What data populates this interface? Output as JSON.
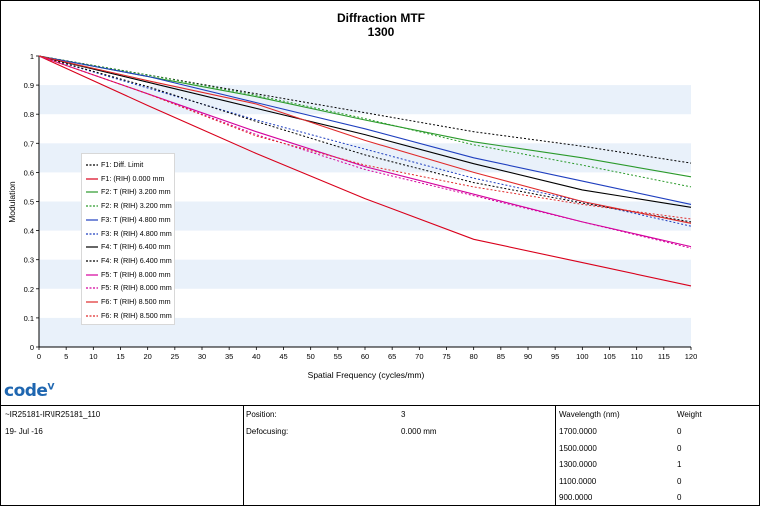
{
  "chart_data": {
    "type": "line",
    "title": "Diffraction MTF",
    "subtitle": "1300",
    "xlabel": "Spatial Frequency (cycles/mm)",
    "ylabel": "Modulation",
    "xlim": [
      0,
      120
    ],
    "ylim": [
      0,
      1
    ],
    "x_ticks": [
      "0",
      "5",
      "10",
      "15",
      "20",
      "25",
      "30",
      "35",
      "40",
      "45",
      "50",
      "55",
      "60",
      "65",
      "70",
      "75",
      "80",
      "85",
      "90",
      "95",
      "100",
      "105",
      "110",
      "115",
      "120"
    ],
    "y_ticks": [
      "0",
      "0.1",
      "0.2",
      "0.3",
      "0.4",
      "0.5",
      "0.6",
      "0.7",
      "0.8",
      "0.9",
      "1"
    ],
    "x": [
      0,
      20,
      40,
      60,
      80,
      100,
      120
    ],
    "series": [
      {
        "name": "F1: Diff. Limit",
        "color": "#000000",
        "dash": true,
        "values": [
          1.0,
          0.935,
          0.87,
          0.805,
          0.74,
          0.69,
          0.632
        ]
      },
      {
        "name": "F1: (RIH) 0.000 mm",
        "color": "#d9001b",
        "dash": false,
        "values": [
          1.0,
          0.83,
          0.665,
          0.51,
          0.37,
          0.29,
          0.21
        ]
      },
      {
        "name": "F2: T (RIH) 3.200 mm",
        "color": "#2b9a2b",
        "dash": false,
        "values": [
          1.0,
          0.93,
          0.86,
          0.78,
          0.705,
          0.65,
          0.585
        ]
      },
      {
        "name": "F2: R (RIH) 3.200 mm",
        "color": "#2b9a2b",
        "dash": true,
        "values": [
          1.0,
          0.935,
          0.865,
          0.785,
          0.695,
          0.625,
          0.55
        ]
      },
      {
        "name": "F3: T (RIH) 4.800 mm",
        "color": "#1f3fbf",
        "dash": false,
        "values": [
          1.0,
          0.93,
          0.84,
          0.75,
          0.65,
          0.57,
          0.49
        ]
      },
      {
        "name": "F3: R (RIH) 4.800 mm",
        "color": "#1f3fbf",
        "dash": true,
        "values": [
          1.0,
          0.89,
          0.78,
          0.68,
          0.58,
          0.5,
          0.415
        ]
      },
      {
        "name": "F4: T (RIH) 6.400 mm",
        "color": "#000000",
        "dash": false,
        "values": [
          1.0,
          0.91,
          0.82,
          0.73,
          0.63,
          0.54,
          0.48
        ]
      },
      {
        "name": "F4: R (RIH) 6.400 mm",
        "color": "#000000",
        "dash": true,
        "values": [
          1.0,
          0.895,
          0.775,
          0.66,
          0.565,
          0.495,
          0.43
        ]
      },
      {
        "name": "F5: T (RIH) 8.000 mm",
        "color": "#d4009c",
        "dash": false,
        "values": [
          1.0,
          0.87,
          0.74,
          0.62,
          0.525,
          0.43,
          0.345
        ]
      },
      {
        "name": "F5: R (RIH) 8.000 mm",
        "color": "#d4009c",
        "dash": true,
        "values": [
          1.0,
          0.87,
          0.73,
          0.61,
          0.52,
          0.43,
          0.34
        ]
      },
      {
        "name": "F6: T (RIH) 8.500 mm",
        "color": "#e02a2a",
        "dash": false,
        "values": [
          1.0,
          0.915,
          0.835,
          0.71,
          0.6,
          0.5,
          0.425
        ]
      },
      {
        "name": "F6: R (RIH) 8.500 mm",
        "color": "#e02a2a",
        "dash": true,
        "values": [
          1.0,
          0.87,
          0.725,
          0.625,
          0.55,
          0.49,
          0.44
        ]
      }
    ]
  },
  "info": {
    "file_name": "~IR25181-IR\\IR25181_110",
    "date": "19- Jul -16",
    "position_label": "Position:",
    "position_value": "3",
    "defocusing_label": "Defocusing:",
    "defocusing_value": "0.000 mm",
    "wavelength_header": "Wavelength (nm)",
    "weight_header": "Weight",
    "wavelengths": [
      {
        "wl": "1700.0000",
        "weight": "0"
      },
      {
        "wl": "1500.0000",
        "weight": "0"
      },
      {
        "wl": "1300.0000",
        "weight": "1"
      },
      {
        "wl": "1100.0000",
        "weight": "0"
      },
      {
        "wl": "900.0000",
        "weight": "0"
      }
    ]
  },
  "logo": {
    "text": "code",
    "suffix": "V"
  }
}
